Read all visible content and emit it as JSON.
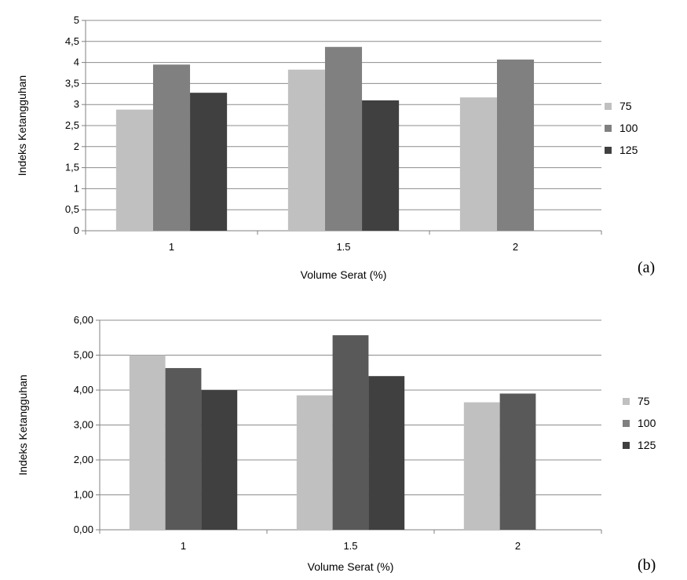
{
  "chart_data": [
    {
      "type": "bar",
      "panel_label": "(a)",
      "xlabel": "Volume Serat (%)",
      "ylabel": "Indeks Ketangguhan",
      "categories": [
        "1",
        "1.5",
        "2"
      ],
      "ylim": [
        0,
        5
      ],
      "ytick_step": 0.5,
      "yticks": [
        "0",
        "0,5",
        "1",
        "1,5",
        "2",
        "2,5",
        "3",
        "3,5",
        "4",
        "4,5",
        "5"
      ],
      "grid": true,
      "legend_position": "right",
      "series": [
        {
          "name": "75",
          "color": "#c0c0c0",
          "values": [
            2.88,
            3.83,
            3.17
          ]
        },
        {
          "name": "100",
          "color": "#808080",
          "values": [
            3.95,
            4.37,
            4.07
          ]
        },
        {
          "name": "125",
          "color": "#404040",
          "values": [
            3.28,
            3.1,
            null
          ]
        }
      ]
    },
    {
      "type": "bar",
      "panel_label": "(b)",
      "xlabel": "Volume Serat (%)",
      "ylabel": "Indeks Ketangguhan",
      "categories": [
        "1",
        "1.5",
        "2"
      ],
      "ylim": [
        0,
        6
      ],
      "ytick_step": 1,
      "yticks": [
        "0,00",
        "1,00",
        "2,00",
        "3,00",
        "4,00",
        "5,00",
        "6,00"
      ],
      "grid": true,
      "legend_position": "right",
      "series": [
        {
          "name": "75",
          "color": "#c0c0c0",
          "values": [
            5.0,
            3.85,
            3.65
          ]
        },
        {
          "name": "100",
          "color": "#595959",
          "values": [
            4.63,
            5.57,
            3.9
          ]
        },
        {
          "name": "125",
          "color": "#404040",
          "values": [
            4.0,
            4.4,
            null
          ]
        }
      ],
      "legend_swatch_colors": [
        "#c0c0c0",
        "#808080",
        "#404040"
      ]
    }
  ]
}
